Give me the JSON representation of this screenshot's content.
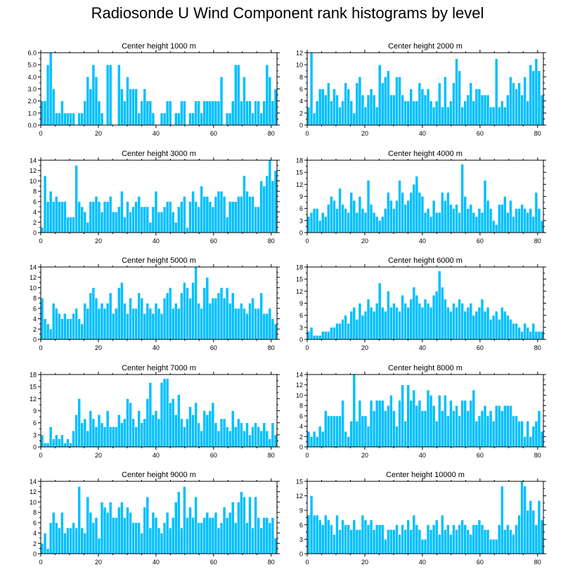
{
  "page": {
    "title": "Radiosonde U Wind Component rank histograms by level"
  },
  "style": {
    "bar_color": "#00bfff",
    "bar_edge": "#ffffff",
    "axis_color": "#000000"
  },
  "chart_data": [
    {
      "type": "bar",
      "title": "Center height 1000 m",
      "xlim": [
        0,
        82
      ],
      "ylim": [
        0,
        6
      ],
      "xticks": [
        0,
        20,
        40,
        60,
        80
      ],
      "yticks": [
        0,
        1,
        2,
        3,
        4,
        5,
        6
      ],
      "ytick_labels": [
        "0.0",
        "1.0",
        "2.0",
        "3.0",
        "4.0",
        "5.0",
        "6.0"
      ],
      "values": [
        2,
        2,
        5,
        6,
        3,
        1,
        1,
        2,
        1,
        1,
        1,
        1,
        0,
        1,
        1,
        2,
        4,
        3,
        5,
        4,
        2,
        1,
        0,
        5,
        5,
        0,
        0,
        5,
        3,
        2,
        4,
        3,
        3,
        3,
        1,
        2,
        3,
        2,
        2,
        1,
        0,
        0,
        1,
        1,
        2,
        2,
        0,
        1,
        1,
        2,
        2,
        0,
        1,
        1,
        2,
        2,
        1,
        2,
        2,
        2,
        2,
        2,
        2,
        4,
        0,
        1,
        1,
        2,
        5,
        5,
        2,
        4,
        2,
        2,
        1,
        2,
        2,
        1,
        2,
        5,
        4,
        2,
        3
      ]
    },
    {
      "type": "bar",
      "title": "Center height 2000 m",
      "xlim": [
        0,
        82
      ],
      "ylim": [
        0,
        12
      ],
      "xticks": [
        0,
        20,
        40,
        60,
        80
      ],
      "yticks": [
        0,
        2,
        4,
        6,
        8,
        10,
        12
      ],
      "ytick_labels": [
        "0",
        "2",
        "4",
        "6",
        "8",
        "10",
        "12"
      ],
      "values": [
        3,
        12,
        2,
        4,
        6,
        6,
        5,
        7,
        4,
        6,
        5,
        3,
        4,
        7,
        6,
        4,
        2,
        7,
        8,
        5,
        3,
        5,
        6,
        5,
        3,
        10,
        7,
        8,
        9,
        5,
        5,
        8,
        8,
        5,
        4,
        4,
        6,
        4,
        4,
        7,
        6,
        5,
        6,
        4,
        3,
        4,
        7,
        3,
        8,
        3,
        4,
        7,
        11,
        9,
        3,
        4,
        5,
        7,
        4,
        6,
        6,
        5,
        5,
        5,
        3,
        3,
        11,
        3,
        4,
        3,
        5,
        8,
        7,
        6,
        7,
        5,
        8,
        4,
        10,
        9,
        11,
        9,
        5
      ]
    },
    {
      "type": "bar",
      "title": "Center height 3000 m",
      "xlim": [
        0,
        82
      ],
      "ylim": [
        0,
        14
      ],
      "xticks": [
        0,
        20,
        40,
        60,
        80
      ],
      "yticks": [
        0,
        2,
        4,
        6,
        8,
        10,
        12,
        14
      ],
      "ytick_labels": [
        "0",
        "2",
        "4",
        "6",
        "8",
        "10",
        "12",
        "14"
      ],
      "values": [
        1,
        11,
        6,
        8,
        6,
        7,
        6,
        6,
        6,
        3,
        3,
        3,
        13,
        6,
        5,
        4,
        2,
        6,
        6,
        7,
        6,
        4,
        6,
        6,
        7,
        4,
        4,
        5,
        8,
        3,
        6,
        4,
        5,
        6,
        7,
        5,
        5,
        5,
        2,
        5,
        8,
        4,
        4,
        5,
        6,
        6,
        4,
        2,
        5,
        6,
        7,
        1,
        6,
        8,
        6,
        5,
        9,
        7,
        7,
        6,
        5,
        7,
        8,
        8,
        7,
        3,
        6,
        6,
        6,
        7,
        7,
        11,
        8,
        7,
        7,
        5,
        5,
        10,
        9,
        11,
        14,
        10,
        12
      ]
    },
    {
      "type": "bar",
      "title": "Center height 4000 m",
      "xlim": [
        0,
        82
      ],
      "ylim": [
        0,
        18
      ],
      "xticks": [
        0,
        20,
        40,
        60,
        80
      ],
      "yticks": [
        0,
        3,
        6,
        9,
        12,
        15,
        18
      ],
      "ytick_labels": [
        "0",
        "3",
        "6",
        "9",
        "12",
        "15",
        "18"
      ],
      "values": [
        4,
        5,
        6,
        6,
        3,
        5,
        4,
        7,
        9,
        8,
        6,
        11,
        7,
        6,
        5,
        10,
        8,
        5,
        9,
        6,
        5,
        13,
        7,
        5,
        4,
        3,
        4,
        6,
        10,
        8,
        6,
        8,
        13,
        10,
        7,
        8,
        10,
        12,
        14,
        10,
        9,
        5,
        6,
        4,
        8,
        5,
        5,
        10,
        8,
        10,
        7,
        6,
        7,
        5,
        17,
        9,
        6,
        7,
        5,
        4,
        6,
        5,
        13,
        8,
        6,
        3,
        2,
        7,
        7,
        9,
        5,
        8,
        4,
        6,
        6,
        7,
        6,
        5,
        6,
        4,
        10,
        6,
        3
      ]
    },
    {
      "type": "bar",
      "title": "Center height 5000 m",
      "xlim": [
        0,
        82
      ],
      "ylim": [
        0,
        14
      ],
      "xticks": [
        0,
        20,
        40,
        60,
        80
      ],
      "yticks": [
        0,
        2,
        4,
        6,
        8,
        10,
        12,
        14
      ],
      "ytick_labels": [
        "0",
        "2",
        "4",
        "6",
        "8",
        "10",
        "12",
        "14"
      ],
      "values": [
        8,
        4,
        3,
        2,
        7,
        6,
        5,
        4,
        5,
        4,
        4,
        5,
        6,
        4,
        3,
        7,
        6,
        9,
        10,
        8,
        6,
        7,
        6,
        7,
        9,
        5,
        6,
        10,
        11,
        7,
        5,
        8,
        6,
        6,
        9,
        8,
        5,
        7,
        6,
        5,
        7,
        6,
        5,
        8,
        9,
        10,
        6,
        7,
        6,
        9,
        11,
        10,
        8,
        11,
        14,
        7,
        6,
        10,
        12,
        7,
        8,
        8,
        9,
        10,
        8,
        10,
        7,
        9,
        6,
        6,
        7,
        6,
        5,
        7,
        8,
        6,
        6,
        9,
        5,
        5,
        6,
        4,
        3
      ]
    },
    {
      "type": "bar",
      "title": "Center height 6000 m",
      "xlim": [
        0,
        82
      ],
      "ylim": [
        0,
        18
      ],
      "xticks": [
        0,
        20,
        40,
        60,
        80
      ],
      "yticks": [
        0,
        3,
        6,
        9,
        12,
        15,
        18
      ],
      "ytick_labels": [
        "0",
        "3",
        "6",
        "9",
        "12",
        "15",
        "18"
      ],
      "values": [
        2,
        3,
        1,
        1,
        1,
        2,
        2,
        2,
        3,
        3,
        4,
        4,
        5,
        6,
        4,
        7,
        8,
        5,
        9,
        6,
        7,
        10,
        8,
        7,
        9,
        14,
        8,
        7,
        12,
        8,
        9,
        8,
        7,
        11,
        9,
        8,
        10,
        13,
        11,
        9,
        8,
        10,
        9,
        8,
        11,
        12,
        17,
        13,
        10,
        8,
        7,
        9,
        8,
        10,
        9,
        7,
        8,
        9,
        6,
        7,
        8,
        10,
        7,
        8,
        5,
        6,
        7,
        5,
        8,
        7,
        6,
        5,
        4,
        4,
        3,
        2,
        4,
        3,
        2,
        4,
        2,
        2,
        2
      ]
    },
    {
      "type": "bar",
      "title": "Center height 7000 m",
      "xlim": [
        0,
        82
      ],
      "ylim": [
        0,
        18
      ],
      "xticks": [
        0,
        20,
        40,
        60,
        80
      ],
      "yticks": [
        0,
        3,
        6,
        9,
        12,
        15,
        18
      ],
      "ytick_labels": [
        "0",
        "3",
        "6",
        "9",
        "12",
        "15",
        "18"
      ],
      "values": [
        3,
        1,
        1,
        5,
        2,
        3,
        2,
        3,
        1,
        2,
        1,
        4,
        8,
        12,
        6,
        7,
        4,
        9,
        7,
        5,
        8,
        6,
        5,
        9,
        5,
        5,
        5,
        8,
        6,
        7,
        12,
        11,
        7,
        5,
        9,
        6,
        7,
        12,
        16,
        8,
        9,
        7,
        16,
        17,
        17,
        11,
        12,
        8,
        13,
        7,
        5,
        7,
        10,
        8,
        11,
        6,
        4,
        9,
        8,
        9,
        11,
        6,
        4,
        7,
        7,
        5,
        4,
        9,
        5,
        7,
        6,
        4,
        6,
        3,
        5,
        6,
        5,
        4,
        6,
        4,
        2,
        6,
        3
      ]
    },
    {
      "type": "bar",
      "title": "Center height 8000 m",
      "xlim": [
        0,
        82
      ],
      "ylim": [
        0,
        14
      ],
      "xticks": [
        0,
        20,
        40,
        60,
        80
      ],
      "yticks": [
        0,
        2,
        4,
        6,
        8,
        10,
        12,
        14
      ],
      "ytick_labels": [
        "0",
        "2",
        "4",
        "6",
        "8",
        "10",
        "12",
        "14"
      ],
      "values": [
        3,
        2,
        3,
        2,
        4,
        3,
        7,
        6,
        6,
        6,
        6,
        6,
        9,
        3,
        2,
        5,
        14,
        5,
        9,
        6,
        6,
        4,
        9,
        7,
        9,
        9,
        9,
        7,
        8,
        10,
        7,
        4,
        9,
        12,
        5,
        12,
        9,
        11,
        8,
        9,
        7,
        7,
        11,
        10,
        8,
        5,
        10,
        7,
        10,
        6,
        9,
        7,
        8,
        6,
        9,
        9,
        7,
        9,
        11,
        5,
        6,
        7,
        8,
        6,
        7,
        5,
        8,
        8,
        7,
        8,
        8,
        8,
        6,
        6,
        5,
        5,
        2,
        5,
        2,
        4,
        5,
        7,
        3
      ]
    },
    {
      "type": "bar",
      "title": "Center height 9000 m",
      "xlim": [
        0,
        82
      ],
      "ylim": [
        0,
        14
      ],
      "xticks": [
        0,
        20,
        40,
        60,
        80
      ],
      "yticks": [
        0,
        2,
        4,
        6,
        8,
        10,
        12,
        14
      ],
      "ytick_labels": [
        "0",
        "2",
        "4",
        "6",
        "8",
        "10",
        "12",
        "14"
      ],
      "values": [
        2,
        4,
        1,
        6,
        8,
        6,
        5,
        8,
        4,
        5,
        5,
        6,
        5,
        13,
        5,
        4,
        11,
        8,
        6,
        7,
        3,
        10,
        9,
        8,
        10,
        7,
        7,
        9,
        10,
        7,
        9,
        8,
        6,
        6,
        6,
        4,
        9,
        11,
        5,
        8,
        7,
        5,
        4,
        6,
        8,
        5,
        7,
        10,
        12,
        5,
        13,
        7,
        9,
        7,
        11,
        6,
        6,
        7,
        8,
        7,
        7,
        8,
        5,
        6,
        9,
        7,
        8,
        10,
        6,
        10,
        12,
        11,
        6,
        11,
        5,
        11,
        7,
        5,
        7,
        7,
        6,
        7,
        3
      ]
    },
    {
      "type": "bar",
      "title": "Center height 10000 m",
      "xlim": [
        0,
        82
      ],
      "ylim": [
        0,
        15
      ],
      "xticks": [
        0,
        20,
        40,
        60,
        80
      ],
      "yticks": [
        0,
        3,
        6,
        9,
        12,
        15
      ],
      "ytick_labels": [
        "0",
        "3",
        "6",
        "9",
        "12",
        "15"
      ],
      "values": [
        8,
        12,
        8,
        8,
        7,
        6,
        8,
        7,
        6,
        4,
        8,
        5,
        7,
        6,
        6,
        5,
        7,
        5,
        5,
        8,
        7,
        6,
        7,
        5,
        6,
        6,
        6,
        3,
        5,
        5,
        5,
        6,
        4,
        6,
        5,
        7,
        5,
        8,
        6,
        5,
        3,
        3,
        6,
        5,
        6,
        7,
        4,
        8,
        5,
        6,
        4,
        6,
        5,
        6,
        7,
        6,
        5,
        4,
        6,
        6,
        7,
        6,
        5,
        5,
        3,
        3,
        3,
        6,
        14,
        5,
        6,
        5,
        4,
        6,
        8,
        15,
        14,
        9,
        11,
        9,
        6,
        11,
        7
      ]
    }
  ]
}
